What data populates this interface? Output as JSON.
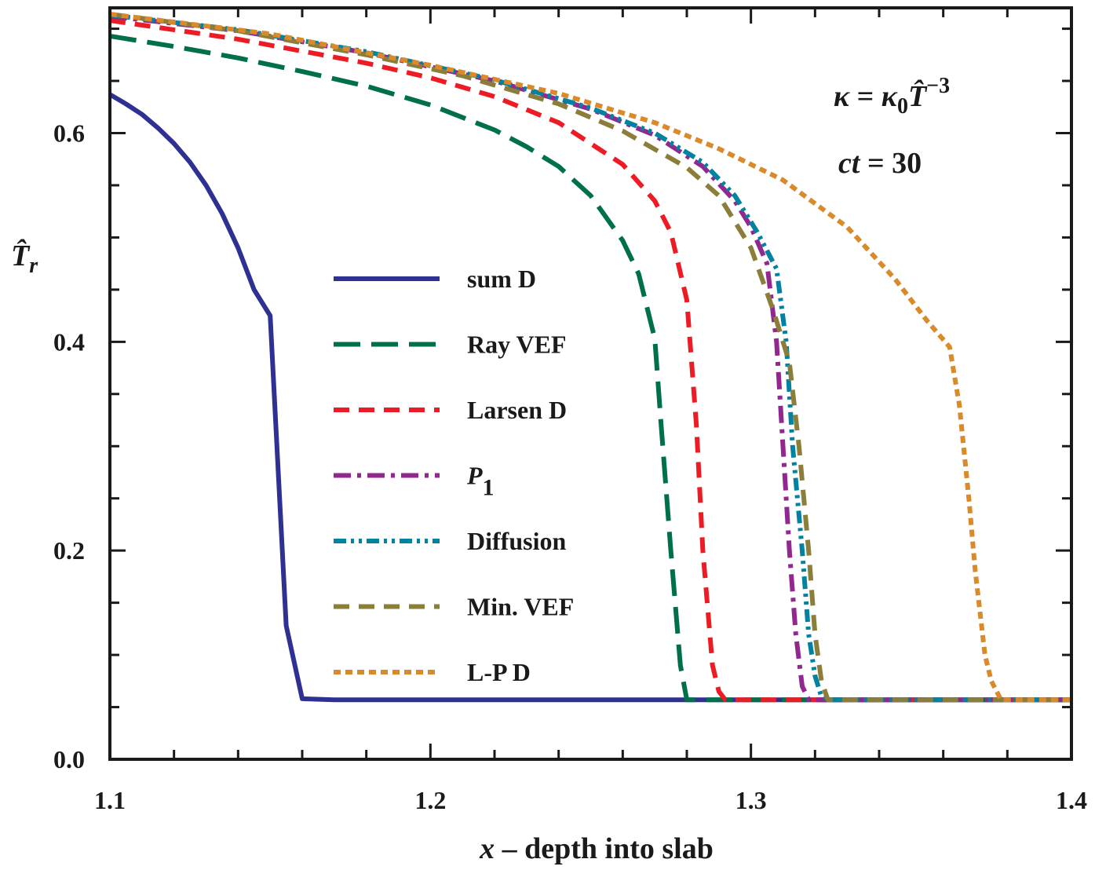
{
  "chart_data": {
    "type": "line",
    "xlabel": "x – depth into slab",
    "xlabel_var": "x",
    "xlabel_rest": " – depth into slab",
    "ylabel": "T̂r",
    "ylabel_var": "T̂",
    "ylabel_sub": "r",
    "xlim": [
      1.1,
      1.4
    ],
    "ylim": [
      0.0,
      0.72
    ],
    "xticks": [
      1.1,
      1.2,
      1.3,
      1.4
    ],
    "xtick_labels": [
      "1.1",
      "1.2",
      "1.3",
      "1.4"
    ],
    "yticks": [
      0.0,
      0.2,
      0.4,
      0.6
    ],
    "ytick_labels": [
      "0.0",
      "0.2",
      "0.4",
      "0.6"
    ],
    "grid": false,
    "legend_position": "center-left",
    "annotations": {
      "kappa_kappa": "κ",
      "kappa_eq": " = ",
      "kappa_k0": "κ",
      "kappa_sub0": "0",
      "kappa_T": "T̂",
      "kappa_exp": "−3",
      "ct_var": "ct",
      "ct_eq": " = ",
      "ct_val": "30"
    },
    "series": [
      {
        "name": "sum D",
        "color": "#2e3192",
        "style": "solid",
        "x": [
          1.1,
          1.105,
          1.11,
          1.115,
          1.12,
          1.125,
          1.13,
          1.135,
          1.14,
          1.145,
          1.15,
          1.155,
          1.16,
          1.17,
          1.2,
          1.25,
          1.3,
          1.35,
          1.4
        ],
        "y": [
          0.637,
          0.628,
          0.618,
          0.605,
          0.59,
          0.572,
          0.55,
          0.523,
          0.49,
          0.45,
          0.425,
          0.128,
          0.058,
          0.057,
          0.057,
          0.057,
          0.057,
          0.057,
          0.057
        ]
      },
      {
        "name": "Ray VEF",
        "color": "#00704a",
        "style": "longdash",
        "x": [
          1.1,
          1.12,
          1.14,
          1.16,
          1.18,
          1.2,
          1.22,
          1.23,
          1.24,
          1.25,
          1.26,
          1.265,
          1.27,
          1.272,
          1.275,
          1.278,
          1.28,
          1.3,
          1.35,
          1.4
        ],
        "y": [
          0.693,
          0.683,
          0.672,
          0.659,
          0.645,
          0.627,
          0.603,
          0.587,
          0.568,
          0.54,
          0.497,
          0.465,
          0.403,
          0.32,
          0.2,
          0.09,
          0.057,
          0.057,
          0.057,
          0.057
        ]
      },
      {
        "name": "Larsen D",
        "color": "#ed1c24",
        "style": "dash",
        "x": [
          1.1,
          1.14,
          1.18,
          1.2,
          1.22,
          1.24,
          1.26,
          1.27,
          1.275,
          1.28,
          1.283,
          1.285,
          1.288,
          1.29,
          1.292,
          1.3,
          1.35,
          1.4
        ],
        "y": [
          0.708,
          0.69,
          0.667,
          0.653,
          0.635,
          0.61,
          0.57,
          0.535,
          0.505,
          0.44,
          0.32,
          0.2,
          0.09,
          0.065,
          0.057,
          0.057,
          0.057,
          0.057
        ]
      },
      {
        "name": "P1",
        "name_base": "P",
        "name_sub": "1",
        "color": "#92278f",
        "style": "dashdot",
        "x": [
          1.1,
          1.14,
          1.18,
          1.22,
          1.25,
          1.27,
          1.285,
          1.295,
          1.3,
          1.305,
          1.308,
          1.31,
          1.312,
          1.314,
          1.316,
          1.318,
          1.325,
          1.35,
          1.4
        ],
        "y": [
          0.712,
          0.698,
          0.677,
          0.65,
          0.623,
          0.598,
          0.568,
          0.535,
          0.51,
          0.475,
          0.4,
          0.3,
          0.2,
          0.12,
          0.07,
          0.057,
          0.057,
          0.057,
          0.057
        ]
      },
      {
        "name": "Diffusion",
        "color": "#0082a0",
        "style": "dashdotdot",
        "x": [
          1.1,
          1.14,
          1.18,
          1.22,
          1.25,
          1.27,
          1.285,
          1.295,
          1.302,
          1.308,
          1.311,
          1.313,
          1.316,
          1.318,
          1.32,
          1.322,
          1.325,
          1.35,
          1.4
        ],
        "y": [
          0.713,
          0.699,
          0.678,
          0.651,
          0.624,
          0.6,
          0.572,
          0.54,
          0.505,
          0.47,
          0.4,
          0.3,
          0.2,
          0.12,
          0.08,
          0.06,
          0.057,
          0.057,
          0.057
        ]
      },
      {
        "name": "Min. VEF",
        "color": "#8b7d3a",
        "style": "dash",
        "x": [
          1.1,
          1.14,
          1.18,
          1.21,
          1.24,
          1.26,
          1.28,
          1.29,
          1.3,
          1.307,
          1.312,
          1.315,
          1.318,
          1.32,
          1.322,
          1.324,
          1.33,
          1.35,
          1.4
        ],
        "y": [
          0.714,
          0.698,
          0.675,
          0.655,
          0.628,
          0.602,
          0.567,
          0.54,
          0.49,
          0.43,
          0.38,
          0.3,
          0.2,
          0.12,
          0.075,
          0.057,
          0.057,
          0.057,
          0.057
        ]
      },
      {
        "name": "L-P D",
        "color": "#d98a2b",
        "style": "dot",
        "x": [
          1.1,
          1.15,
          1.2,
          1.24,
          1.27,
          1.29,
          1.31,
          1.33,
          1.345,
          1.355,
          1.362,
          1.365,
          1.368,
          1.37,
          1.373,
          1.375,
          1.378,
          1.38,
          1.4
        ],
        "y": [
          0.714,
          0.695,
          0.665,
          0.638,
          0.61,
          0.585,
          0.555,
          0.51,
          0.46,
          0.42,
          0.395,
          0.34,
          0.25,
          0.18,
          0.1,
          0.075,
          0.057,
          0.057,
          0.057
        ]
      }
    ]
  }
}
